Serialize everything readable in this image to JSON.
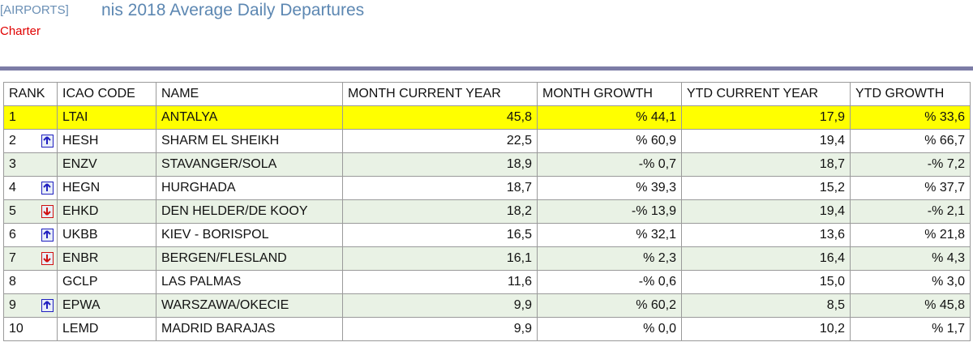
{
  "header": {
    "section": "[AIRPORTS]",
    "title": "nis 2018 Average Daily Departures",
    "subtitle": "Charter"
  },
  "table": {
    "columns": [
      "RANK",
      "ICAO CODE",
      "NAME",
      "MONTH CURRENT YEAR",
      "MONTH GROWTH",
      "YTD CURRENT YEAR",
      "YTD GROWTH"
    ],
    "rows": [
      {
        "rank": "1",
        "icao": "LTAI",
        "name": "ANTALYA",
        "month": "45,8",
        "month_growth": "% 44,1",
        "ytd": "17,9",
        "ytd_growth": "% 33,6",
        "highlight": true
      },
      {
        "rank": "2",
        "trend": "up",
        "icao": "HESH",
        "name": "SHARM EL SHEIKH",
        "month": "22,5",
        "month_growth": "% 60,9",
        "ytd": "19,4",
        "ytd_growth": "% 66,7"
      },
      {
        "rank": "3",
        "icao": "ENZV",
        "name": "STAVANGER/SOLA",
        "month": "18,9",
        "month_growth": "-% 0,7",
        "ytd": "18,7",
        "ytd_growth": "-% 7,2"
      },
      {
        "rank": "4",
        "trend": "up",
        "icao": "HEGN",
        "name": "HURGHADA",
        "month": "18,7",
        "month_growth": "% 39,3",
        "ytd": "15,2",
        "ytd_growth": "% 37,7"
      },
      {
        "rank": "5",
        "trend": "down",
        "icao": "EHKD",
        "name": "DEN HELDER/DE KOOY",
        "month": "18,2",
        "month_growth": "-% 13,9",
        "ytd": "19,4",
        "ytd_growth": "-% 2,1"
      },
      {
        "rank": "6",
        "trend": "up",
        "icao": "UKBB",
        "name": "KIEV - BORISPOL",
        "month": "16,5",
        "month_growth": "% 32,1",
        "ytd": "13,6",
        "ytd_growth": "% 21,8"
      },
      {
        "rank": "7",
        "trend": "down",
        "icao": "ENBR",
        "name": "BERGEN/FLESLAND",
        "month": "16,1",
        "month_growth": "% 2,3",
        "ytd": "16,4",
        "ytd_growth": "% 4,3"
      },
      {
        "rank": "8",
        "icao": "GCLP",
        "name": "LAS PALMAS",
        "month": "11,6",
        "month_growth": "-% 0,6",
        "ytd": "15,0",
        "ytd_growth": "% 3,0"
      },
      {
        "rank": "9",
        "trend": "up",
        "icao": "EPWA",
        "name": "WARSZAWA/OKECIE",
        "month": "9,9",
        "month_growth": "% 60,2",
        "ytd": "8,5",
        "ytd_growth": "% 45,8"
      },
      {
        "rank": "10",
        "icao": "LEMD",
        "name": "MADRID BARAJAS",
        "month": "9,9",
        "month_growth": "% 0,0",
        "ytd": "10,2",
        "ytd_growth": "% 1,7"
      }
    ]
  }
}
